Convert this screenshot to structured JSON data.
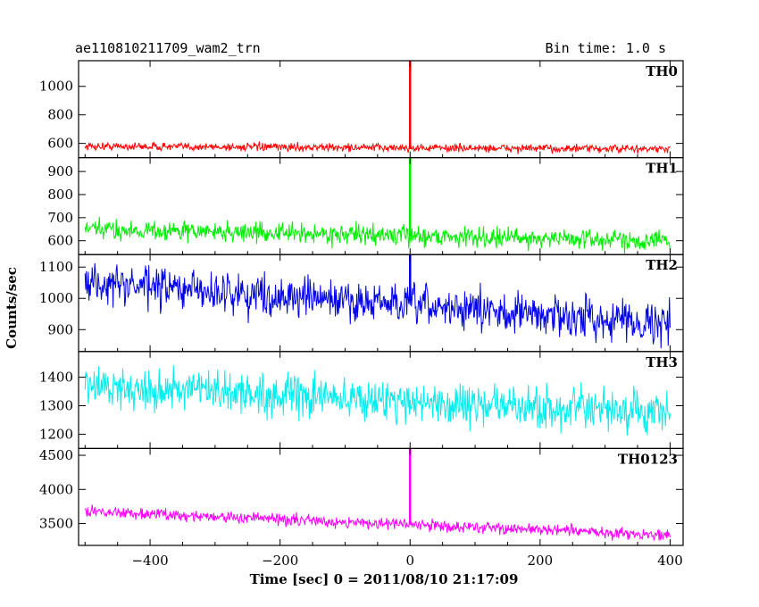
{
  "chart_data": {
    "type": "line",
    "title": "ae110810211709_wam2_trn",
    "subtitle": "Bin time: 1.0 s",
    "xlabel": "Time [sec] 0 = 2011/08/10 21:17:09",
    "ylabel": "Counts/sec",
    "xlim": [
      -510,
      420
    ],
    "x_ticks": [
      -400,
      -200,
      0,
      200,
      400
    ],
    "x_tick_labels": [
      "−400",
      "−200",
      "0",
      "200",
      "400"
    ],
    "grid": false,
    "panels": [
      {
        "name": "TH0",
        "color": "#ff0000",
        "ylim": [
          500,
          1180
        ],
        "y_ticks": [
          600,
          800,
          1000
        ],
        "y_tick_labels": [
          "600",
          "800",
          "1000"
        ],
        "x_start": -500,
        "x_end": 400,
        "baseline_start": 580,
        "baseline_end": 560,
        "noise": 20,
        "spike": {
          "x": 0,
          "y": 1180,
          "base": 560
        }
      },
      {
        "name": "TH1",
        "color": "#00ee00",
        "ylim": [
          540,
          960
        ],
        "y_ticks": [
          600,
          700,
          800,
          900
        ],
        "y_tick_labels": [
          "600",
          "700",
          "800",
          "900"
        ],
        "x_start": -500,
        "x_end": 400,
        "baseline_start": 650,
        "baseline_end": 600,
        "noise": 30,
        "spike": {
          "x": 0,
          "y": 960,
          "base": 620
        }
      },
      {
        "name": "TH2",
        "color": "#0000ee",
        "ylim": [
          830,
          1140
        ],
        "y_ticks": [
          900,
          1000,
          1100
        ],
        "y_tick_labels": [
          "900",
          "1000",
          "1100"
        ],
        "x_start": -500,
        "x_end": 400,
        "baseline_start": 1050,
        "baseline_end": 920,
        "noise": 45,
        "spike": {
          "x": 0,
          "y": 1140,
          "base": 990
        }
      },
      {
        "name": "TH3",
        "color": "#00eeee",
        "ylim": [
          1150,
          1490
        ],
        "y_ticks": [
          1200,
          1300,
          1400
        ],
        "y_tick_labels": [
          "1200",
          "1300",
          "1400"
        ],
        "x_start": -500,
        "x_end": 400,
        "baseline_start": 1370,
        "baseline_end": 1270,
        "noise": 50,
        "spike": null
      },
      {
        "name": "TH0123",
        "color": "#ff00ff",
        "ylim": [
          3180,
          4600
        ],
        "y_ticks": [
          3500,
          4000,
          4500
        ],
        "y_tick_labels": [
          "3500",
          "4000",
          "4500"
        ],
        "x_start": -500,
        "x_end": 400,
        "baseline_start": 3680,
        "baseline_end": 3330,
        "noise": 60,
        "spike": {
          "x": 0,
          "y": 4600,
          "base": 3500
        }
      }
    ]
  }
}
